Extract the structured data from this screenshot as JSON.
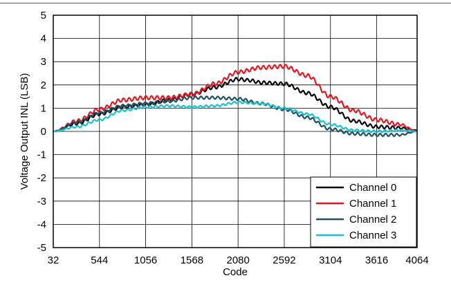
{
  "chart_data": {
    "type": "line",
    "title": "",
    "xlabel": "Code",
    "ylabel": "Voltage Output INL (LSB)",
    "xlim": [
      32,
      4064
    ],
    "ylim": [
      -5,
      5
    ],
    "xticks": [
      32,
      544,
      1056,
      1568,
      2080,
      2592,
      3104,
      3616,
      4064
    ],
    "xtick_labels": [
      "32",
      "544",
      "1056",
      "1568",
      "2080",
      "2592",
      "3104",
      "3616",
      "4064"
    ],
    "yticks": [
      -5,
      -4,
      -3,
      -2,
      -1,
      0,
      1,
      2,
      3,
      4,
      5
    ],
    "ytick_labels": [
      "-5",
      "-4",
      "-3",
      "-2",
      "-1",
      "0",
      "1",
      "2",
      "3",
      "4",
      "5"
    ],
    "grid": true,
    "legend_position": "bottom-right",
    "series": [
      {
        "name": "Channel 0",
        "color": "#000000",
        "x": [
          32,
          300,
          544,
          800,
          1056,
          1312,
          1568,
          1824,
          2080,
          2200,
          2336,
          2592,
          2848,
          3104,
          3360,
          3616,
          3872,
          4064
        ],
        "y": [
          0.0,
          0.35,
          0.75,
          1.05,
          1.15,
          1.35,
          1.6,
          1.9,
          2.25,
          2.2,
          2.1,
          2.05,
          1.65,
          1.05,
          0.45,
          0.2,
          0.15,
          0.05
        ]
      },
      {
        "name": "Channel 1",
        "color": "#e8141e",
        "x": [
          32,
          300,
          544,
          800,
          1056,
          1312,
          1568,
          1824,
          2080,
          2336,
          2592,
          2848,
          3104,
          3360,
          3616,
          3872,
          4064
        ],
        "y": [
          0.0,
          0.45,
          0.95,
          1.35,
          1.45,
          1.45,
          1.6,
          2.05,
          2.55,
          2.75,
          2.8,
          2.4,
          1.5,
          0.9,
          0.5,
          0.3,
          0.0
        ]
      },
      {
        "name": "Channel 2",
        "color": "#1e5060",
        "x": [
          32,
          300,
          544,
          800,
          1056,
          1312,
          1568,
          1824,
          2080,
          2336,
          2592,
          2848,
          3104,
          3360,
          3616,
          3872,
          4064
        ],
        "y": [
          0.0,
          0.4,
          0.8,
          1.1,
          1.2,
          1.3,
          1.45,
          1.45,
          1.4,
          1.2,
          0.95,
          0.6,
          0.1,
          -0.1,
          -0.15,
          -0.15,
          0.0
        ]
      },
      {
        "name": "Channel 3",
        "color": "#17bfcf",
        "x": [
          32,
          300,
          544,
          800,
          1056,
          1312,
          1568,
          1824,
          2080,
          2336,
          2592,
          2848,
          3104,
          3360,
          3616,
          3872,
          4064
        ],
        "y": [
          0.0,
          0.2,
          0.5,
          0.9,
          1.05,
          1.1,
          1.05,
          1.1,
          1.25,
          1.2,
          1.0,
          0.75,
          0.3,
          0.05,
          0.0,
          0.05,
          0.0
        ]
      }
    ]
  }
}
